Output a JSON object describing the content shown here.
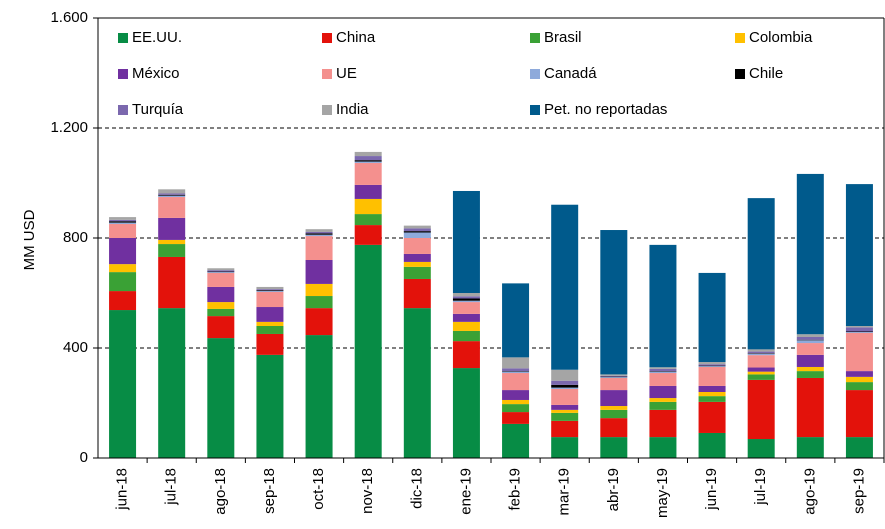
{
  "chart_data": {
    "type": "stacked_bar",
    "y_label": "MM USD",
    "categories": [
      "jun-18",
      "jul-18",
      "ago-18",
      "sep-18",
      "oct-18",
      "nov-18",
      "dic-18",
      "ene-19",
      "feb-19",
      "mar-19",
      "abr-19",
      "may-19",
      "jun-19",
      "jul-19",
      "ago-19",
      "sep-19"
    ],
    "ylim": [
      0,
      1600
    ],
    "yticks": [
      0,
      400,
      800,
      {
        "value": 1200,
        "label": "1.200"
      },
      {
        "value": 1600,
        "label": "1.600"
      }
    ],
    "grid": true,
    "legend": "top",
    "series": [
      {
        "name": "EE.UU.",
        "color": "#078c45",
        "values": [
          538,
          545,
          436,
          375,
          447,
          775,
          545,
          327,
          124,
          76,
          76,
          76,
          91,
          69,
          76,
          76
        ]
      },
      {
        "name": "China",
        "color": "#e3120b",
        "values": [
          69,
          186,
          80,
          76,
          98,
          72,
          106,
          98,
          43,
          59,
          69,
          99,
          113,
          215,
          215,
          171
        ]
      },
      {
        "name": "Brasil",
        "color": "#3aa135",
        "values": [
          69,
          47,
          26,
          29,
          44,
          40,
          44,
          37,
          29,
          29,
          30,
          29,
          21,
          20,
          25,
          29
        ]
      },
      {
        "name": "Colombia",
        "color": "#ffc000",
        "values": [
          29,
          15,
          25,
          15,
          44,
          55,
          18,
          33,
          15,
          11,
          14,
          14,
          15,
          10,
          15,
          19
        ]
      },
      {
        "name": "México",
        "color": "#7030a0",
        "values": [
          95,
          80,
          55,
          54,
          87,
          51,
          29,
          29,
          36,
          18,
          58,
          44,
          22,
          15,
          44,
          21
        ]
      },
      {
        "name": "UE",
        "color": "#f4908e",
        "values": [
          51,
          76,
          51,
          55,
          87,
          80,
          58,
          43,
          62,
          58,
          44,
          47,
          69,
          45,
          43,
          139
        ]
      },
      {
        "name": "Canadá",
        "color": "#8eaadb",
        "values": [
          5,
          5,
          3,
          3,
          5,
          5,
          20,
          5,
          5,
          5,
          3,
          5,
          3,
          5,
          10,
          3
        ]
      },
      {
        "name": "Chile",
        "color": "#000000",
        "values": [
          5,
          3,
          2,
          3,
          5,
          5,
          5,
          8,
          2,
          10,
          2,
          2,
          2,
          2,
          2,
          2
        ]
      },
      {
        "name": "Turquía",
        "color": "#7b68ae",
        "values": [
          5,
          5,
          5,
          4,
          5,
          15,
          10,
          8,
          10,
          15,
          3,
          8,
          5,
          6,
          10,
          15
        ]
      },
      {
        "name": "India",
        "color": "#a5a5a5",
        "values": [
          10,
          15,
          7,
          8,
          10,
          15,
          10,
          12,
          40,
          40,
          5,
          6,
          8,
          8,
          10,
          5
        ]
      },
      {
        "name": "Pet. no reportadas",
        "color": "#005a8c",
        "values": [
          0,
          0,
          0,
          0,
          0,
          0,
          0,
          371,
          269,
          600,
          525,
          445,
          324,
          550,
          583,
          516
        ]
      }
    ]
  }
}
